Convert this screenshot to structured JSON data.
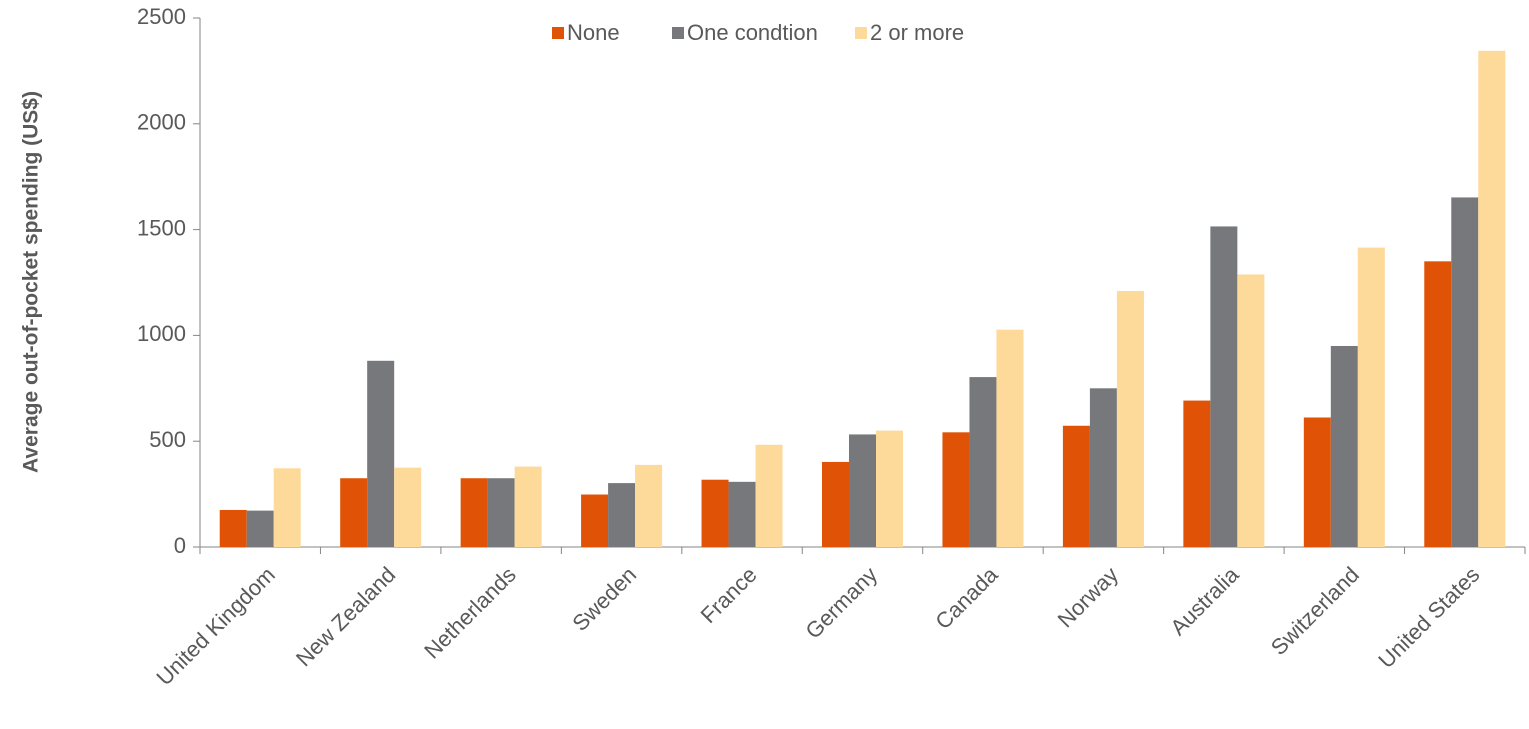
{
  "chart_data": {
    "type": "bar",
    "y_label": "Average out-of-pocket spending (US$)",
    "categories": [
      "United Kingdom",
      "New Zealand",
      "Netherlands",
      "Sweden",
      "France",
      "Germany",
      "Canada",
      "Norway",
      "Australia",
      "Switzerland",
      "United States"
    ],
    "series": [
      {
        "name": "None",
        "color": "#e05206",
        "values": [
          175,
          325,
          325,
          248,
          318,
          402,
          542,
          573,
          692,
          612,
          1350
        ]
      },
      {
        "name": "One condtion",
        "color": "#77787b",
        "values": [
          172,
          880,
          325,
          302,
          308,
          532,
          803,
          750,
          1515,
          950,
          1652
        ]
      },
      {
        "name": "2 or more",
        "color": "#fdd99a",
        "values": [
          372,
          375,
          380,
          388,
          483,
          550,
          1027,
          1210,
          1288,
          1415,
          2345
        ]
      }
    ],
    "ylim": [
      0,
      2500
    ],
    "yticks": [
      0,
      500,
      1000,
      1500,
      2000,
      2500
    ],
    "legend": "top"
  }
}
